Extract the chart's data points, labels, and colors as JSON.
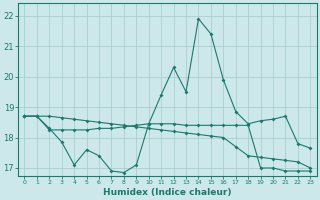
{
  "xlabel": "Humidex (Indice chaleur)",
  "ylabel": "",
  "background_color": "#cce8ea",
  "grid_color": "#aacfd2",
  "line_color": "#1a7a6e",
  "xlim": [
    -0.5,
    23.5
  ],
  "ylim": [
    16.75,
    22.4
  ],
  "xticks": [
    0,
    1,
    2,
    3,
    4,
    5,
    6,
    7,
    8,
    9,
    10,
    11,
    12,
    13,
    14,
    15,
    16,
    17,
    18,
    19,
    20,
    21,
    22,
    23
  ],
  "yticks": [
    17,
    18,
    19,
    20,
    21,
    22
  ],
  "line1_x": [
    0,
    1,
    2,
    3,
    4,
    5,
    6,
    7,
    8,
    9,
    10,
    11,
    12,
    13,
    14,
    15,
    16,
    17,
    18,
    19,
    20,
    21,
    22,
    23
  ],
  "line1_y": [
    18.7,
    18.7,
    18.3,
    17.85,
    17.1,
    17.6,
    17.4,
    16.9,
    16.85,
    17.1,
    18.45,
    18.45,
    18.45,
    18.4,
    18.4,
    18.4,
    18.4,
    18.4,
    18.4,
    17.0,
    17.0,
    16.9,
    16.9,
    16.9
  ],
  "line2_x": [
    0,
    1,
    2,
    3,
    4,
    5,
    6,
    7,
    8,
    9,
    10,
    11,
    12,
    13,
    14,
    15,
    16,
    17,
    18,
    19,
    20,
    21,
    22,
    23
  ],
  "line2_y": [
    18.7,
    18.7,
    18.25,
    18.25,
    18.25,
    18.25,
    18.3,
    18.3,
    18.35,
    18.4,
    18.45,
    19.4,
    20.3,
    19.5,
    21.9,
    21.4,
    19.9,
    18.85,
    18.45,
    18.55,
    18.6,
    18.7,
    17.8,
    17.65
  ],
  "line3_x": [
    0,
    1,
    2,
    3,
    4,
    5,
    6,
    7,
    8,
    9,
    10,
    11,
    12,
    13,
    14,
    15,
    16,
    17,
    18,
    19,
    20,
    21,
    22,
    23
  ],
  "line3_y": [
    18.7,
    18.7,
    18.7,
    18.65,
    18.6,
    18.55,
    18.5,
    18.45,
    18.4,
    18.35,
    18.3,
    18.25,
    18.2,
    18.15,
    18.1,
    18.05,
    18.0,
    17.7,
    17.4,
    17.35,
    17.3,
    17.25,
    17.2,
    17.0
  ],
  "xtick_labels": [
    "0",
    "1",
    "2",
    "3",
    "4",
    "5",
    "6",
    "7",
    "8",
    "9",
    "10",
    "11",
    "12",
    "13",
    "14",
    "15",
    "16",
    "17",
    "18",
    "19",
    "20",
    "21",
    "22",
    "23"
  ]
}
